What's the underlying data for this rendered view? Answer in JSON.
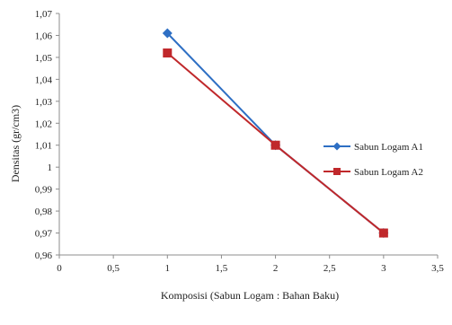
{
  "chart_data": {
    "type": "line",
    "title": "",
    "xlabel": "Komposisi (Sabun Logam : Bahan Baku)",
    "ylabel": "Densitas (gr/cm3)",
    "xlim": [
      0,
      3.5
    ],
    "ylim": [
      0.96,
      1.07
    ],
    "x_ticks": [
      0,
      0.5,
      1,
      1.5,
      2,
      2.5,
      3,
      3.5
    ],
    "x_tick_labels": [
      "0",
      "0,5",
      "1",
      "1,5",
      "2",
      "2,5",
      "3",
      "3,5"
    ],
    "y_ticks": [
      0.96,
      0.97,
      0.98,
      0.99,
      1.0,
      1.01,
      1.02,
      1.03,
      1.04,
      1.05,
      1.06,
      1.07
    ],
    "y_tick_labels": [
      "0,96",
      "0,97",
      "0,98",
      "0,99",
      "1",
      "1,01",
      "1,02",
      "1,03",
      "1,04",
      "1,05",
      "1,06",
      "1,07"
    ],
    "grid": false,
    "legend_position": "right",
    "series": [
      {
        "name": "Sabun Logam A1",
        "color": "#2e6fc4",
        "marker": "diamond",
        "x": [
          1,
          2,
          3
        ],
        "y": [
          1.061,
          1.01,
          0.97
        ]
      },
      {
        "name": "Sabun Logam A2",
        "color": "#c0282b",
        "marker": "square",
        "x": [
          1,
          2,
          3
        ],
        "y": [
          1.052,
          1.01,
          0.97
        ]
      }
    ]
  }
}
